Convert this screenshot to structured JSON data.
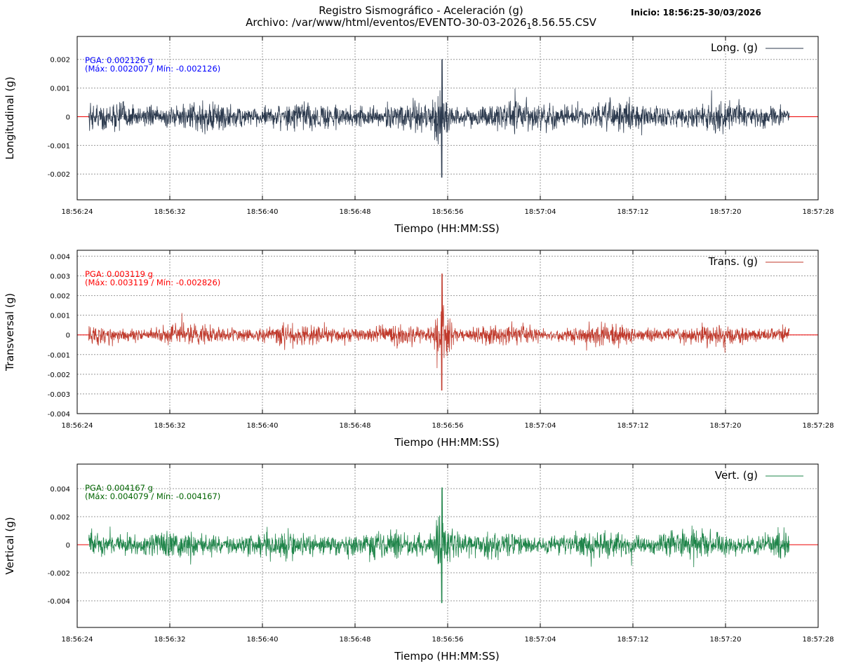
{
  "header": {
    "title": "Registro Sismográfico - Aceleración (g)",
    "file_prefix": "Archivo: /var/www/html/eventos/EVENTO-30-03-2026",
    "file_sub": "1",
    "file_suffix": "8.56.55.CSV",
    "start": "Inicio: 18:56:25-30/03/2026"
  },
  "chart_data": [
    {
      "type": "line",
      "name": "Long. (g)",
      "ylabel": "Longitudinal (g)",
      "xlabel": "Tiempo (HH:MM:SS)",
      "color": "#2c3a4e",
      "text_color": "#0000ff",
      "pga_label": "PGA: 0.002126 g",
      "maxmin_label": "(Máx: 0.002007 / Mín: -0.002126)",
      "pga": 0.002126,
      "max": 0.002007,
      "min": -0.002126,
      "noise_amplitude": 0.0004,
      "peak_time_s": 31.5,
      "ylim": [
        -0.0029,
        0.0028
      ],
      "yticks": [
        -0.002,
        -0.001,
        0,
        0.001,
        0.002
      ],
      "ytick_labels": [
        "-0.002",
        "-0.001",
        "0",
        "0.001",
        "0.002"
      ]
    },
    {
      "type": "line",
      "name": "Trans. (g)",
      "ylabel": "Transversal (g)",
      "xlabel": "Tiempo (HH:MM:SS)",
      "color": "#c0392b",
      "text_color": "#ff0000",
      "pga_label": "PGA: 0.003119 g",
      "maxmin_label": "(Máx: 0.003119 / Mín: -0.002826)",
      "pga": 0.003119,
      "max": 0.003119,
      "min": -0.002826,
      "noise_amplitude": 0.0004,
      "peak_time_s": 31.5,
      "ylim": [
        -0.004,
        0.0043
      ],
      "yticks": [
        -0.004,
        -0.003,
        -0.002,
        -0.001,
        0,
        0.001,
        0.002,
        0.003,
        0.004
      ],
      "ytick_labels": [
        "-0.004",
        "-0.003",
        "-0.002",
        "-0.001",
        "0",
        "0.001",
        "0.002",
        "0.003",
        "0.004"
      ]
    },
    {
      "type": "line",
      "name": "Vert. (g)",
      "ylabel": "Vertical (g)",
      "xlabel": "Tiempo (HH:MM:SS)",
      "color": "#1e8449",
      "text_color": "#006400",
      "pga_label": "PGA: 0.004167 g",
      "maxmin_label": "(Máx: 0.004079 / Mín: -0.004167)",
      "pga": 0.004167,
      "max": 0.004079,
      "min": -0.004167,
      "noise_amplitude": 0.0008,
      "peak_time_s": 31.5,
      "ylim": [
        -0.0059,
        0.00575
      ],
      "yticks": [
        -0.004,
        -0.002,
        0,
        0.002,
        0.004
      ],
      "ytick_labels": [
        "-0.004",
        "-0.002",
        "0",
        "0.002",
        "0.004"
      ]
    }
  ],
  "x_axis": {
    "range_s": [
      0,
      64
    ],
    "data_range_s": [
      1,
      61.5
    ],
    "tick_labels": [
      "18:56:24",
      "18:56:32",
      "18:56:40",
      "18:56:48",
      "18:56:56",
      "18:57:04",
      "18:57:12",
      "18:57:20",
      "18:57:28"
    ]
  }
}
